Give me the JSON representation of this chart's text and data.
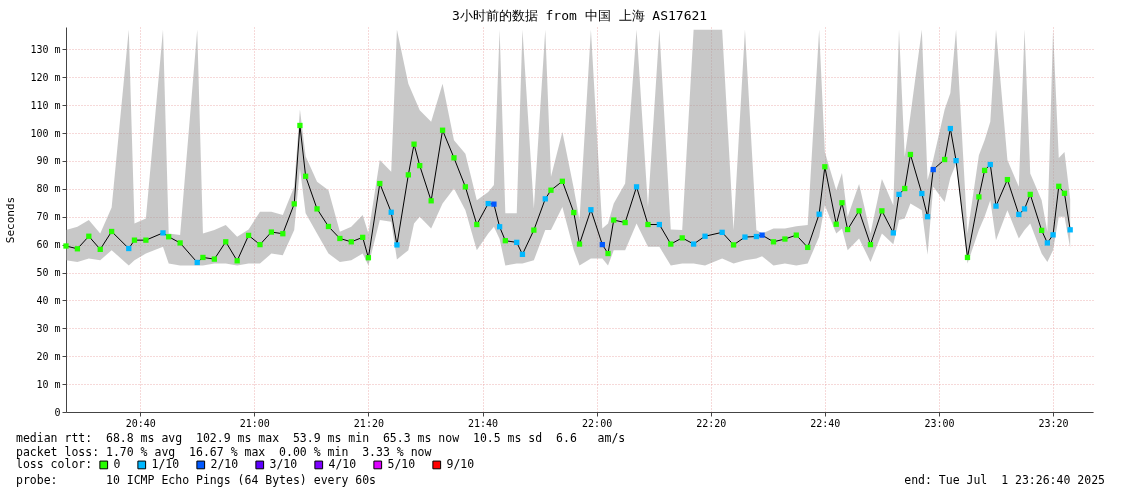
{
  "chart_data": {
    "type": "line",
    "title": "3小时前的数据 from 中国 上海 AS17621",
    "ylabel": "Seconds",
    "legend_title": "loss color:",
    "legend": "bottom",
    "grid": true,
    "line_style": "solid",
    "xlim": [
      "2025-07-01T20:27",
      "2025-07-01T23:27"
    ],
    "xticks": [
      {
        "value": "2025-07-01T20:40",
        "label": "20:40"
      },
      {
        "value": "2025-07-01T21:00",
        "label": "21:00"
      },
      {
        "value": "2025-07-01T21:20",
        "label": "21:20"
      },
      {
        "value": "2025-07-01T21:40",
        "label": "21:40"
      },
      {
        "value": "2025-07-01T22:00",
        "label": "22:00"
      },
      {
        "value": "2025-07-01T22:20",
        "label": "22:20"
      },
      {
        "value": "2025-07-01T22:40",
        "label": "22:40"
      },
      {
        "value": "2025-07-01T23:00",
        "label": "23:00"
      },
      {
        "value": "2025-07-01T23:20",
        "label": "23:20"
      }
    ],
    "ylim": [
      0,
      138
    ],
    "yticks": [
      0,
      {
        "value": 10,
        "label": "10 m"
      },
      {
        "value": 20,
        "label": "20 m"
      },
      {
        "value": 30,
        "label": "30 m"
      },
      {
        "value": 40,
        "label": "40 m"
      },
      {
        "value": 50,
        "label": "50 m"
      },
      {
        "value": 60,
        "label": "60 m"
      },
      {
        "value": 70,
        "label": "70 m"
      },
      {
        "value": 80,
        "label": "80 m"
      },
      {
        "value": 90,
        "label": "90 m"
      },
      {
        "value": 100,
        "label": "100 m"
      },
      {
        "value": 110,
        "label": "110 m"
      },
      {
        "value": 120,
        "label": "120 m"
      },
      {
        "value": 130,
        "label": "130 m"
      }
    ],
    "series": [
      {
        "color": "#000000",
        "x": [
          "2025-07-01T20:27",
          "2025-07-01T20:29",
          "2025-07-01T20:31",
          "2025-07-01T20:33",
          "2025-07-01T20:35",
          "2025-07-01T20:38",
          "2025-07-01T20:39",
          "2025-07-01T20:41",
          "2025-07-01T20:44",
          "2025-07-01T20:45",
          "2025-07-01T20:47",
          "2025-07-01T20:50",
          "2025-07-01T20:51",
          "2025-07-01T20:53",
          "2025-07-01T20:55",
          "2025-07-01T20:57",
          "2025-07-01T20:59",
          "2025-07-01T21:01",
          "2025-07-01T21:03",
          "2025-07-01T21:05",
          "2025-07-01T21:07",
          "2025-07-01T21:08",
          "2025-07-01T21:09",
          "2025-07-01T21:11",
          "2025-07-01T21:13",
          "2025-07-01T21:15",
          "2025-07-01T21:17",
          "2025-07-01T21:19",
          "2025-07-01T21:20",
          "2025-07-01T21:22",
          "2025-07-01T21:24",
          "2025-07-01T21:25",
          "2025-07-01T21:27",
          "2025-07-01T21:28",
          "2025-07-01T21:29",
          "2025-07-01T21:31",
          "2025-07-01T21:33",
          "2025-07-01T21:35",
          "2025-07-01T21:37",
          "2025-07-01T21:39",
          "2025-07-01T21:41",
          "2025-07-01T21:42",
          "2025-07-01T21:43",
          "2025-07-01T21:44",
          "2025-07-01T21:46",
          "2025-07-01T21:47",
          "2025-07-01T21:49",
          "2025-07-01T21:51",
          "2025-07-01T21:52",
          "2025-07-01T21:54",
          "2025-07-01T21:56",
          "2025-07-01T21:57",
          "2025-07-01T21:59",
          "2025-07-01T22:01",
          "2025-07-01T22:02",
          "2025-07-01T22:03",
          "2025-07-01T22:05",
          "2025-07-01T22:07",
          "2025-07-01T22:09",
          "2025-07-01T22:11",
          "2025-07-01T22:13",
          "2025-07-01T22:15",
          "2025-07-01T22:17",
          "2025-07-01T22:19",
          "2025-07-01T22:22",
          "2025-07-01T22:24",
          "2025-07-01T22:26",
          "2025-07-01T22:28",
          "2025-07-01T22:29",
          "2025-07-01T22:31",
          "2025-07-01T22:33",
          "2025-07-01T22:35",
          "2025-07-01T22:37",
          "2025-07-01T22:39",
          "2025-07-01T22:40",
          "2025-07-01T22:42",
          "2025-07-01T22:43",
          "2025-07-01T22:44",
          "2025-07-01T22:46",
          "2025-07-01T22:48",
          "2025-07-01T22:50",
          "2025-07-01T22:52",
          "2025-07-01T22:53",
          "2025-07-01T22:54",
          "2025-07-01T22:55",
          "2025-07-01T22:57",
          "2025-07-01T22:58",
          "2025-07-01T22:59",
          "2025-07-01T23:01",
          "2025-07-01T23:02",
          "2025-07-01T23:03",
          "2025-07-01T23:05",
          "2025-07-01T23:07",
          "2025-07-01T23:08",
          "2025-07-01T23:09",
          "2025-07-01T23:10",
          "2025-07-01T23:12",
          "2025-07-01T23:14",
          "2025-07-01T23:15",
          "2025-07-01T23:16",
          "2025-07-01T23:18",
          "2025-07-01T23:19",
          "2025-07-01T23:20",
          "2025-07-01T23:21",
          "2025-07-01T23:22",
          "2025-07-01T23:23"
        ],
        "values": [
          59.5,
          58.5,
          63,
          58.3,
          64.7,
          58.6,
          61.6,
          61.6,
          64.2,
          62.8,
          60.6,
          53.6,
          55.4,
          54.8,
          61,
          54.2,
          63.3,
          60,
          64.5,
          63.9,
          74.6,
          102.7,
          84.5,
          72.8,
          66.5,
          62.2,
          61,
          62.6,
          55.3,
          81.9,
          71.6,
          59.9,
          85,
          96,
          88.3,
          75.7,
          101,
          91.1,
          80.7,
          67.2,
          74.7,
          74.5,
          66.4,
          61.4,
          60.8,
          56.5,
          65.2,
          76.4,
          79.5,
          82.7,
          71.5,
          60.2,
          72.5,
          60,
          56.8,
          68.8,
          67.9,
          80.7,
          67.2,
          67.2,
          60.2,
          62.4,
          60.2,
          63,
          64.4,
          59.9,
          62.7,
          62.9,
          63.4,
          61,
          62,
          63.4,
          59,
          70.9,
          87.9,
          67.3,
          75,
          65.4,
          72.1,
          60,
          72.1,
          64.2,
          78,
          80.1,
          92.3,
          78.3,
          70,
          86.9,
          90.5,
          101.6,
          90.1,
          55.4,
          77.1,
          86.6,
          88.7,
          73.8,
          83.3,
          70.8,
          72.8,
          78,
          65.1,
          60.6,
          63.5,
          80.9,
          78.4,
          65.3
        ],
        "upper": [
          65.2,
          66.4,
          68.8,
          64,
          73.3,
          137,
          67.6,
          69.4,
          137,
          64,
          63.4,
          137,
          64,
          65.2,
          67,
          62.8,
          65.4,
          71.8,
          71.8,
          70.6,
          80.7,
          108.4,
          91.7,
          82.5,
          79.5,
          64.6,
          66.4,
          70.6,
          64,
          90.3,
          86.1,
          137,
          117.7,
          112.9,
          108.2,
          104,
          117.7,
          97.4,
          92.6,
          75.9,
          78.9,
          81.4,
          137,
          71.2,
          71.2,
          137,
          72.9,
          137,
          84.3,
          100.4,
          80.1,
          68.8,
          137,
          65.8,
          67.6,
          74.7,
          81.9,
          137,
          73.5,
          137,
          65.4,
          65.2,
          137,
          137,
          137,
          65.2,
          137,
          65.2,
          64,
          65.8,
          65.8,
          66.6,
          67,
          137,
          93.2,
          79.5,
          85.7,
          70,
          81.7,
          64,
          83.5,
          74.1,
          137,
          91.5,
          106.4,
          137,
          83.2,
          90.5,
          108.4,
          114.3,
          137,
          64,
          92,
          97.4,
          104,
          137,
          90.3,
          80.7,
          137,
          85.5,
          75.9,
          64.6,
          137,
          91,
          93.2,
          76.3
        ],
        "lower": [
          54.4,
          53.8,
          55,
          54.4,
          58,
          52.5,
          54.4,
          56.8,
          59.2,
          53.2,
          52.5,
          52.5,
          52.5,
          53.2,
          53.2,
          52.5,
          53.2,
          53.2,
          56.8,
          56.2,
          65.2,
          87.3,
          71.2,
          64,
          56.8,
          53.8,
          54.4,
          56.8,
          52.5,
          68.8,
          68.2,
          54.7,
          58,
          67.6,
          70,
          65.8,
          74.7,
          80.1,
          72.3,
          58,
          64,
          66.4,
          62,
          52.5,
          53.2,
          53.2,
          54.4,
          65.2,
          65.2,
          73.5,
          58,
          52.5,
          55,
          55,
          52.5,
          58,
          58,
          67.6,
          59.2,
          59.2,
          52.5,
          53.2,
          53.2,
          52.5,
          55,
          53.2,
          54.4,
          55,
          55.8,
          52.5,
          53.2,
          52.5,
          53.2,
          62.8,
          74.1,
          64,
          65.8,
          58,
          62.2,
          53.8,
          64,
          60.1,
          68.8,
          69.4,
          74.7,
          72.3,
          56.4,
          80.7,
          75.3,
          84,
          89,
          53.2,
          65.2,
          70,
          75.9,
          61.6,
          72.3,
          62.2,
          65.2,
          67.6,
          56.8,
          53.8,
          58,
          70,
          70,
          58.9
        ]
      },
      {
        "type": "scatter",
        "name": "0",
        "color": "#26ff00",
        "marker": "square",
        "x": [
          "2025-07-01T20:27",
          "2025-07-01T20:29",
          "2025-07-01T20:31",
          "2025-07-01T20:33",
          "2025-07-01T20:35",
          "2025-07-01T20:39",
          "2025-07-01T20:41",
          "2025-07-01T20:45",
          "2025-07-01T20:47",
          "2025-07-01T20:51",
          "2025-07-01T20:53",
          "2025-07-01T20:55",
          "2025-07-01T20:57",
          "2025-07-01T20:59",
          "2025-07-01T21:01",
          "2025-07-01T21:03",
          "2025-07-01T21:05",
          "2025-07-01T21:07",
          "2025-07-01T21:08",
          "2025-07-01T21:09",
          "2025-07-01T21:11",
          "2025-07-01T21:13",
          "2025-07-01T21:15",
          "2025-07-01T21:17",
          "2025-07-01T21:19",
          "2025-07-01T21:20",
          "2025-07-01T21:22",
          "2025-07-01T21:27",
          "2025-07-01T21:28",
          "2025-07-01T21:29",
          "2025-07-01T21:31",
          "2025-07-01T21:33",
          "2025-07-01T21:35",
          "2025-07-01T21:37",
          "2025-07-01T21:39",
          "2025-07-01T21:44",
          "2025-07-01T21:49",
          "2025-07-01T21:52",
          "2025-07-01T21:54",
          "2025-07-01T21:56",
          "2025-07-01T21:57",
          "2025-07-01T22:02",
          "2025-07-01T22:03",
          "2025-07-01T22:05",
          "2025-07-01T22:09",
          "2025-07-01T22:13",
          "2025-07-01T22:15",
          "2025-07-01T22:24",
          "2025-07-01T22:31",
          "2025-07-01T22:33",
          "2025-07-01T22:35",
          "2025-07-01T22:37",
          "2025-07-01T22:40",
          "2025-07-01T22:42",
          "2025-07-01T22:43",
          "2025-07-01T22:44",
          "2025-07-01T22:46",
          "2025-07-01T22:48",
          "2025-07-01T22:50",
          "2025-07-01T22:54",
          "2025-07-01T22:55",
          "2025-07-01T23:01",
          "2025-07-01T23:05",
          "2025-07-01T23:07",
          "2025-07-01T23:08",
          "2025-07-01T23:12",
          "2025-07-01T23:16",
          "2025-07-01T23:18",
          "2025-07-01T23:21",
          "2025-07-01T23:22"
        ],
        "values": [
          59.5,
          58.5,
          63,
          58.3,
          64.7,
          61.6,
          61.6,
          62.8,
          60.6,
          55.4,
          54.8,
          61,
          54.2,
          63.3,
          60,
          64.5,
          63.9,
          74.6,
          102.7,
          84.5,
          72.8,
          66.5,
          62.2,
          61,
          62.6,
          55.3,
          81.9,
          85,
          96,
          88.3,
          75.7,
          101,
          91.1,
          80.7,
          67.2,
          61.4,
          65.2,
          79.5,
          82.7,
          71.5,
          60.2,
          56.8,
          68.8,
          67.9,
          67.2,
          60.2,
          62.4,
          59.9,
          61,
          62,
          63.4,
          59,
          87.9,
          67.3,
          75,
          65.4,
          72.1,
          60,
          72.1,
          80.1,
          92.3,
          90.5,
          55.4,
          77.1,
          86.6,
          83.3,
          78,
          65.1,
          80.9,
          78.4
        ]
      },
      {
        "type": "scatter",
        "name": "1/10",
        "color": "#00b8ff",
        "marker": "square",
        "x": [
          "2025-07-01T20:38",
          "2025-07-01T20:44",
          "2025-07-01T20:50",
          "2025-07-01T21:24",
          "2025-07-01T21:25",
          "2025-07-01T21:41",
          "2025-07-01T21:43",
          "2025-07-01T21:46",
          "2025-07-01T21:47",
          "2025-07-01T21:51",
          "2025-07-01T21:59",
          "2025-07-01T22:07",
          "2025-07-01T22:11",
          "2025-07-01T22:17",
          "2025-07-01T22:19",
          "2025-07-01T22:22",
          "2025-07-01T22:26",
          "2025-07-01T22:28",
          "2025-07-01T22:39",
          "2025-07-01T22:52",
          "2025-07-01T22:53",
          "2025-07-01T22:57",
          "2025-07-01T22:58",
          "2025-07-01T23:02",
          "2025-07-01T23:03",
          "2025-07-01T23:09",
          "2025-07-01T23:10",
          "2025-07-01T23:14",
          "2025-07-01T23:15",
          "2025-07-01T23:19",
          "2025-07-01T23:20",
          "2025-07-01T23:23"
        ],
        "values": [
          58.6,
          64.2,
          53.6,
          71.6,
          59.9,
          74.7,
          66.4,
          60.8,
          56.5,
          76.4,
          72.5,
          80.7,
          67.2,
          60.2,
          63,
          64.4,
          62.7,
          62.9,
          70.9,
          64.2,
          78,
          78.3,
          70,
          101.6,
          90.1,
          88.7,
          73.8,
          70.8,
          72.8,
          60.6,
          63.5,
          65.3
        ]
      },
      {
        "type": "scatter",
        "name": "2/10",
        "color": "#0059ff",
        "marker": "square",
        "x": [
          "2025-07-01T21:42",
          "2025-07-01T22:01",
          "2025-07-01T22:29",
          "2025-07-01T22:59"
        ],
        "values": [
          74.5,
          60,
          63.4,
          86.9
        ]
      },
      {
        "type": "scatter",
        "name": "3/10",
        "color": "#5e00ff"
      },
      {
        "type": "scatter",
        "name": "4/10",
        "color": "#7e00ff"
      },
      {
        "type": "scatter",
        "name": "5/10",
        "color": "#dd00ff"
      },
      {
        "type": "scatter",
        "name": "9/10",
        "color": "#ff0000"
      }
    ],
    "annotations": [
      "median rtt:  68.8 ms avg  102.9 ms max  53.9 ms min  65.3 ms now  10.5 ms sd  6.6   am/s",
      "packet loss: 1.70 % avg  16.67 % max  0.00 % min  3.33 % now",
      "probe:       10 ICMP Echo Pings (64 Bytes) every 60s",
      "end: Tue Jul  1 23:26:40 2025"
    ]
  }
}
